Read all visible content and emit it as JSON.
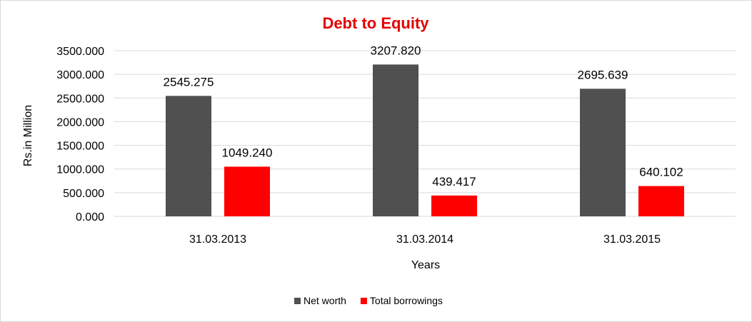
{
  "chart_data": {
    "type": "bar",
    "title": "Debt to Equity",
    "xlabel": "Years",
    "ylabel": "Rs.in Million",
    "categories": [
      "31.03.2013",
      "31.03.2014",
      "31.03.2015"
    ],
    "series": [
      {
        "name": "Net worth",
        "values": [
          2545.275,
          3207.82,
          2695.639
        ],
        "labels": [
          "2545.275",
          "3207.820",
          "2695.639"
        ],
        "color": "#505050"
      },
      {
        "name": "Total borrowings",
        "values": [
          1049.24,
          439.417,
          640.102
        ],
        "labels": [
          "1049.240",
          "439.417",
          "640.102"
        ],
        "color": "#ff0000"
      }
    ],
    "ylim": [
      0,
      3500
    ],
    "yticks": [
      "0.000",
      "500.000",
      "1000.000",
      "1500.000",
      "2000.000",
      "2500.000",
      "3000.000",
      "3500.000"
    ],
    "grid": true,
    "legend": "bottom",
    "title_color": "#e60000",
    "gridline_color": "#d9d9d9"
  }
}
